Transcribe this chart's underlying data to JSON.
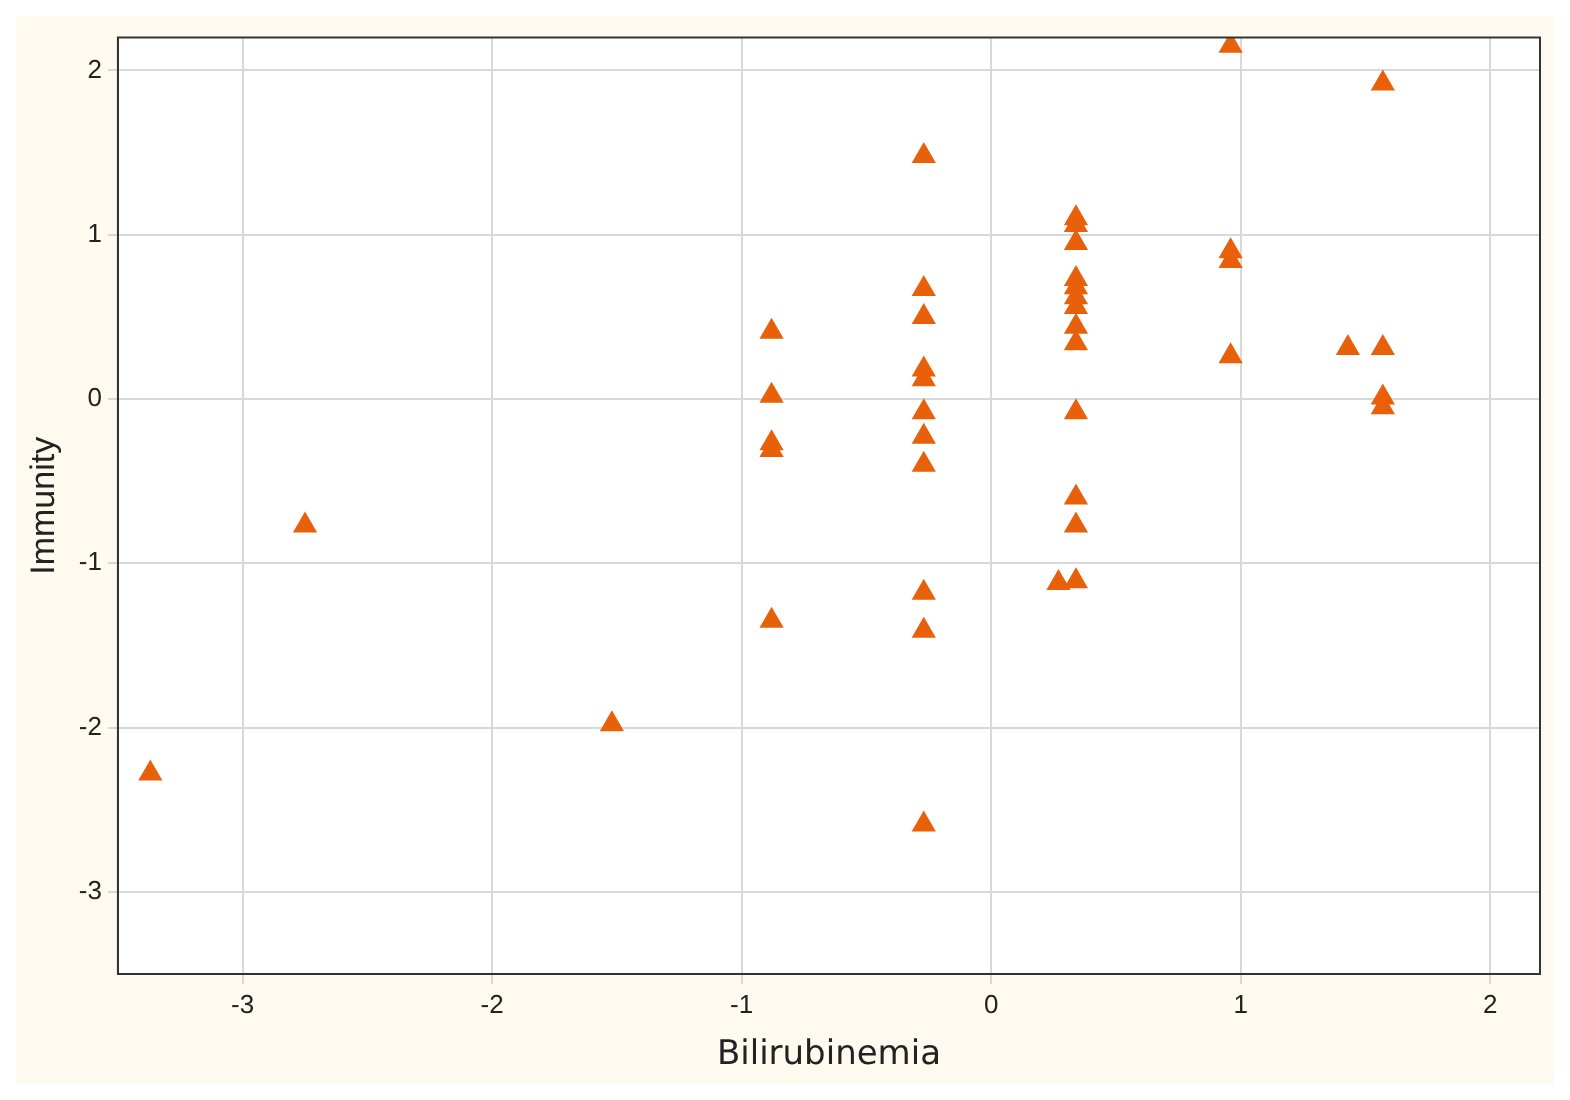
{
  "chart_data": {
    "type": "scatter",
    "xlabel": "Bilirubinemia",
    "ylabel": "Immunity",
    "marker": "triangle",
    "grid": true,
    "xlim": [
      -3.5,
      2.2
    ],
    "xticks": [
      -3,
      -2,
      -1,
      0,
      1,
      2
    ],
    "ylim": [
      -3.5,
      2.2
    ],
    "yticks": [
      -3,
      -2,
      -1,
      0,
      1,
      2
    ],
    "series": [
      {
        "color": "#e8600a",
        "x": [
          -3.37,
          -2.75,
          -1.52,
          -0.88,
          -0.88,
          -0.88,
          -0.88,
          -0.88,
          -0.27,
          -0.27,
          -0.27,
          -0.27,
          -0.27,
          -0.27,
          -0.27,
          -0.27,
          -0.27,
          -0.27,
          -0.27,
          0.27,
          0.34,
          0.34,
          0.34,
          0.34,
          0.34,
          0.34,
          0.34,
          0.34,
          0.34,
          0.34,
          0.34,
          0.34,
          0.34,
          0.96,
          0.96,
          0.96,
          0.96,
          1.43,
          1.57,
          1.57,
          1.57,
          1.57
        ],
        "values": [
          -2.28,
          -0.77,
          -1.98,
          0.41,
          0.02,
          -0.27,
          -0.31,
          -1.35,
          1.48,
          0.67,
          0.5,
          0.18,
          0.12,
          -0.08,
          -0.23,
          -0.4,
          -1.18,
          -1.41,
          -2.59,
          -1.12,
          1.1,
          1.06,
          0.95,
          0.73,
          0.68,
          0.62,
          0.56,
          0.44,
          0.34,
          -0.08,
          -0.6,
          -0.77,
          -1.11,
          2.15,
          0.9,
          0.84,
          0.26,
          0.31,
          1.92,
          0.31,
          0.01,
          -0.05
        ]
      }
    ]
  }
}
